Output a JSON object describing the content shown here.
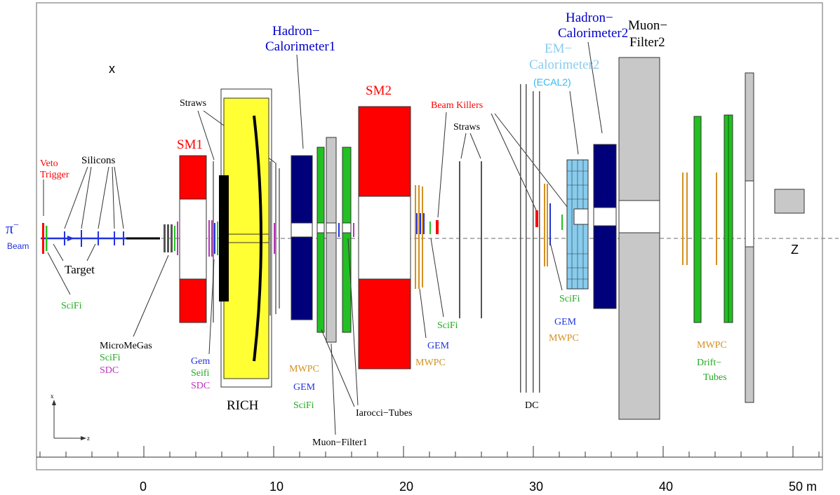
{
  "colors": {
    "red": "#ff0000",
    "blue": "#0000cc",
    "navy": "#00007a",
    "green": "#22c022",
    "yellow": "#ffff33",
    "purple": "#bb33bb",
    "orange": "#d49020",
    "lightblue": "#88ccee",
    "gray": "#c8c8c8",
    "beam": "#2233dd"
  },
  "labels": {
    "axis_x": "x",
    "axis_z": "z",
    "beam_symbol": "π",
    "beam_sup": "−",
    "beam": "Beam",
    "veto": "Veto",
    "trigger": "Trigger",
    "silicons": "Silicons",
    "target": "Target",
    "scifi_target": "SciFi",
    "micromegas": "MicroMeGas",
    "mm_scifi": "SciFi",
    "mm_sdc": "SDC",
    "sm1": "SM1",
    "straws1": "Straws",
    "gem1": "Gem",
    "seifi1": "Seifi",
    "sdc1": "SDC",
    "rich": "RICH",
    "hcal1_line1": "Hadron−",
    "hcal1_line2": "Calorimeter1",
    "mwpc1": "MWPC",
    "gem2": "GEM",
    "scifi2": "SciFi",
    "muon_filter1": "Muon−Filter1",
    "iarocci": "Iarocci−Tubes",
    "sm2": "SM2",
    "gem3": "GEM",
    "mwpc3": "MWPC",
    "scifi3": "SciFi",
    "beam_killers": "Beam Killers",
    "straws2": "Straws",
    "dc": "DC",
    "emcal2_line1": "EM−",
    "emcal2_line2": "Calorimeter2",
    "ecal2": "(ECAL2)",
    "hcal2_line1": "Hadron−",
    "hcal2_line2": "Calorimeter2",
    "scifi4": "SciFi",
    "gem4": "GEM",
    "mwpc4": "MWPC",
    "muon_filter2_line1": "Muon−",
    "muon_filter2_line2": "Filter2",
    "mwpc5": "MWPC",
    "drift_line1": "Drift−",
    "drift_line2": "Tubes",
    "z_label": "Z",
    "legend_x": "x",
    "legend_z": "z"
  },
  "scale": {
    "ticks": [
      {
        "value": 0,
        "label": "0"
      },
      {
        "value": 10,
        "label": "10"
      },
      {
        "value": 20,
        "label": "20"
      },
      {
        "value": 30,
        "label": "30"
      },
      {
        "value": 40,
        "label": "40"
      },
      {
        "value": 50,
        "label": "50 m"
      }
    ]
  }
}
